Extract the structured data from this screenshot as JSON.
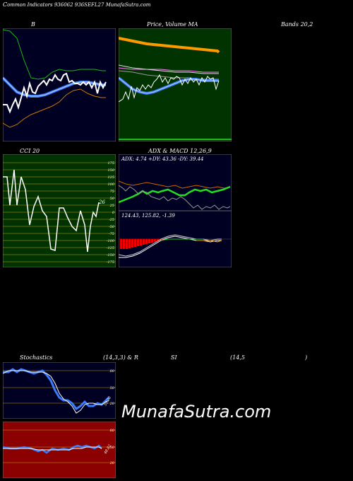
{
  "header": {
    "title": "Common  Indicators 936062  936SEFL27 MunafaSutra.com",
    "title_prefix": "C",
    "title_rest": "ommon  Indicators 936062  936SEFL27 MunafaSutra.com"
  },
  "labels": {
    "bollinger": "B",
    "price_volume": "Price,  Volume  MA",
    "bands": "Bands 20,2",
    "cci": "CCI 20",
    "adx_macd": "ADX  & MACD 12,26,9",
    "stoch_left": "Stochastics",
    "stoch_mid": "(14,3,3) & R",
    "stoch_rsi": "SI",
    "rsi_params": "(14,5",
    "rsi_close": ")"
  },
  "cci": {
    "ticks": [
      "175",
      "150",
      "125",
      "100",
      "75",
      "50",
      "25",
      "0",
      "-25",
      "-50",
      "-75",
      "-100",
      "-125",
      "-150",
      "-175"
    ],
    "value_label": "26"
  },
  "adx": {
    "readout": "ADX: 4.74   +DY: 43.36  -DY: 39.44"
  },
  "macd": {
    "readout": "124.43,   125.82,   -1.39"
  },
  "stoch": {
    "ticks": [
      "80",
      "50",
      "20"
    ],
    "value_label": "55.38"
  },
  "rsi": {
    "ticks": [
      "80",
      "50",
      "20"
    ],
    "value_label": "48.82"
  },
  "watermark": "MunafaSutra.com",
  "colors": {
    "bollinger_bg": "#000022",
    "price_bg": "#003300",
    "cci_bg": "#003300",
    "adx_bg": "#000022",
    "stoch_bg": "#000022",
    "rsi_bg": "#8b0000"
  }
}
